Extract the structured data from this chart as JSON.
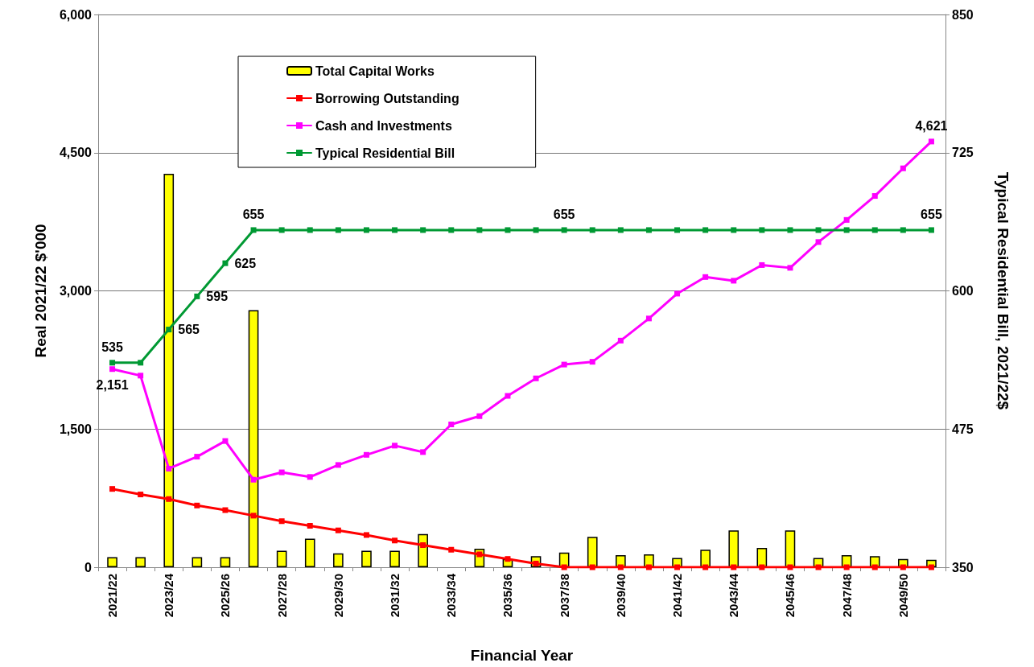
{
  "chart_data": {
    "type": "bar",
    "categories": [
      "2021/22",
      null,
      "2023/24",
      null,
      "2025/26",
      null,
      "2027/28",
      null,
      "2029/30",
      null,
      "2031/32",
      null,
      "2033/34",
      null,
      "2035/36",
      null,
      "2037/38",
      null,
      "2039/40",
      null,
      "2041/42",
      null,
      "2043/44",
      null,
      "2045/46",
      null,
      "2047/48",
      null,
      "2049/50",
      null
    ],
    "series": [
      {
        "name": "Total Capital Works",
        "color": "#ffff00",
        "values": [
          110,
          110,
          4270,
          110,
          110,
          2790,
          180,
          310,
          150,
          180,
          180,
          360,
          0,
          200,
          90,
          120,
          160,
          330,
          130,
          140,
          100,
          190,
          400,
          210,
          400,
          100,
          130,
          120,
          90,
          80
        ]
      },
      {
        "name": "Borrowing Outstanding",
        "type": "line",
        "color": "#ff0000",
        "values": [
          850,
          790,
          740,
          670,
          620,
          560,
          500,
          450,
          400,
          350,
          290,
          240,
          190,
          140,
          90,
          40,
          0,
          0,
          0,
          0,
          0,
          0,
          0,
          0,
          0,
          0,
          0,
          0,
          0,
          0
        ]
      },
      {
        "name": "Cash and Investments",
        "type": "line",
        "color": "#ff00ff",
        "values": [
          2151,
          2080,
          1070,
          1200,
          1370,
          950,
          1030,
          980,
          1110,
          1220,
          1320,
          1250,
          1550,
          1640,
          1860,
          2050,
          2200,
          2230,
          2460,
          2700,
          2970,
          3150,
          3110,
          3280,
          3250,
          3530,
          3770,
          4030,
          4330,
          4621
        ],
        "value_labels": [
          "2,151",
          null,
          null,
          null,
          null,
          null,
          null,
          null,
          null,
          null,
          null,
          null,
          null,
          null,
          null,
          null,
          null,
          null,
          null,
          null,
          null,
          null,
          null,
          null,
          null,
          null,
          null,
          null,
          null,
          "4,621"
        ]
      },
      {
        "name": "Typical Residential Bill",
        "type": "line",
        "axis": "y2",
        "color": "#009933",
        "values": [
          535,
          535,
          565,
          595,
          625,
          655,
          655,
          655,
          655,
          655,
          655,
          655,
          655,
          655,
          655,
          655,
          655,
          655,
          655,
          655,
          655,
          655,
          655,
          655,
          655,
          655,
          655,
          655,
          655,
          655
        ],
        "value_labels": [
          "535",
          null,
          "565",
          "595",
          "625",
          "655",
          null,
          null,
          null,
          null,
          null,
          null,
          null,
          null,
          null,
          null,
          "655",
          null,
          null,
          null,
          null,
          null,
          null,
          null,
          null,
          null,
          null,
          null,
          null,
          "655"
        ]
      }
    ],
    "xlabel": "Financial Year",
    "ylabel": "Real 2021/22 $'000",
    "y2label": "Typical Residential Bill, 2021/22$",
    "ylim": [
      0,
      6000
    ],
    "yticks": [
      0,
      {
        "value": 1500,
        "label": "1,500"
      },
      {
        "value": 3000,
        "label": "3,000"
      },
      {
        "value": 4500,
        "label": "4,500"
      },
      {
        "value": 6000,
        "label": "6,000"
      }
    ],
    "y2lim": [
      350,
      850
    ],
    "y2ticks": [
      350,
      475,
      600,
      725,
      850
    ],
    "grid": "y",
    "legend": "top left",
    "marker": "square"
  }
}
